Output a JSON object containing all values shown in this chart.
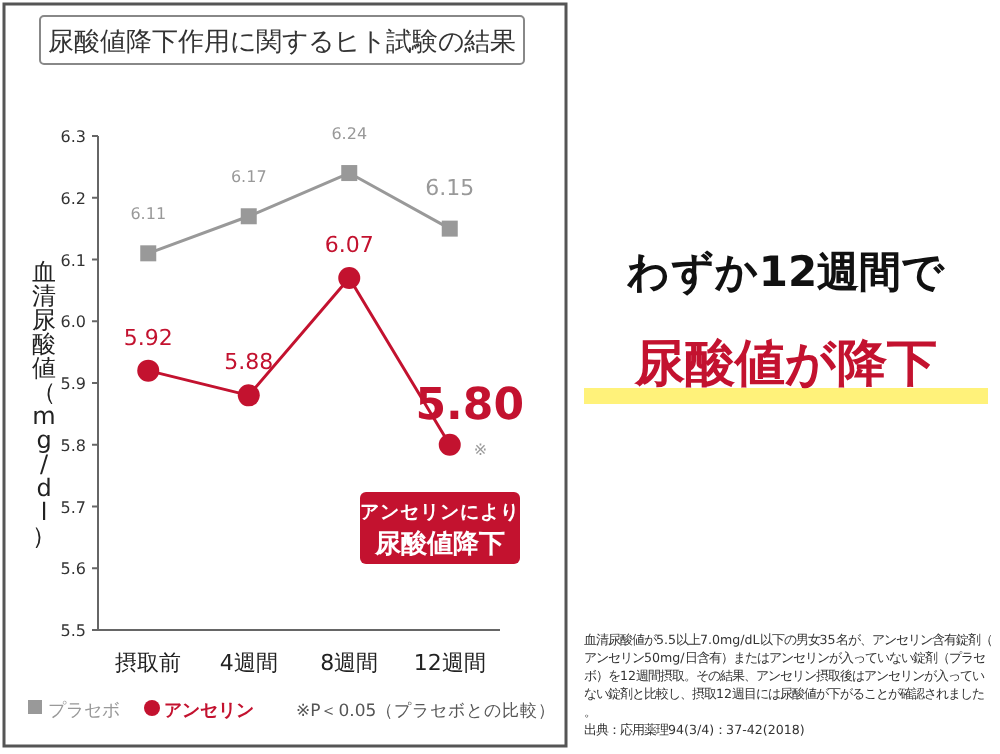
{
  "chart_data": {
    "type": "line",
    "title": "尿酸値降下作用に関するヒト試験の結果",
    "ylabel": "血清尿酸値（mg/dl）",
    "categories": [
      "摂取前",
      "4週間",
      "8週間",
      "12週間"
    ],
    "series": [
      {
        "name": "プラセボ",
        "color": "#999999",
        "marker": "square",
        "values": [
          6.11,
          6.17,
          6.24,
          6.15
        ],
        "value_labels": [
          "6.11",
          "6.17",
          "6.24",
          "6.15"
        ]
      },
      {
        "name": "アンセリン",
        "color": "#c3122f",
        "marker": "circle",
        "values": [
          5.92,
          5.88,
          6.07,
          5.8
        ],
        "value_labels": [
          "5.92",
          "5.88",
          "6.07",
          "5.80"
        ]
      }
    ],
    "ylim": [
      5.5,
      6.3
    ],
    "yticks": [
      5.5,
      5.6,
      5.7,
      5.8,
      5.9,
      {
        "value": 6,
        "label": "6.0"
      },
      6.1,
      6.2,
      6.3
    ],
    "grid": false,
    "legend": "bottom",
    "annotations": [
      {
        "text": "※",
        "x": "12週間",
        "y": 5.8
      },
      "アンセリンにより",
      "尿酸値降下",
      "※P＜0.05（プラセボとの比較）",
      "わずか12週間で",
      "尿酸値が降下",
      "血清尿酸値が5.5以上7.0mg/dL以下の男女35名が、アンセリン含有錠剤（アンセリン50mg/日含有）またはアンセリンが入っていない錠剤（プラセボ）を12週間摂取。その結果、アンセリン摂取後はアンセリンが入っていない錠剤と比較し、摂取12週目には尿酸値が下がることが確認されました。",
      "出典：応用薬理94(3/4)：37-42(2018)"
    ]
  }
}
